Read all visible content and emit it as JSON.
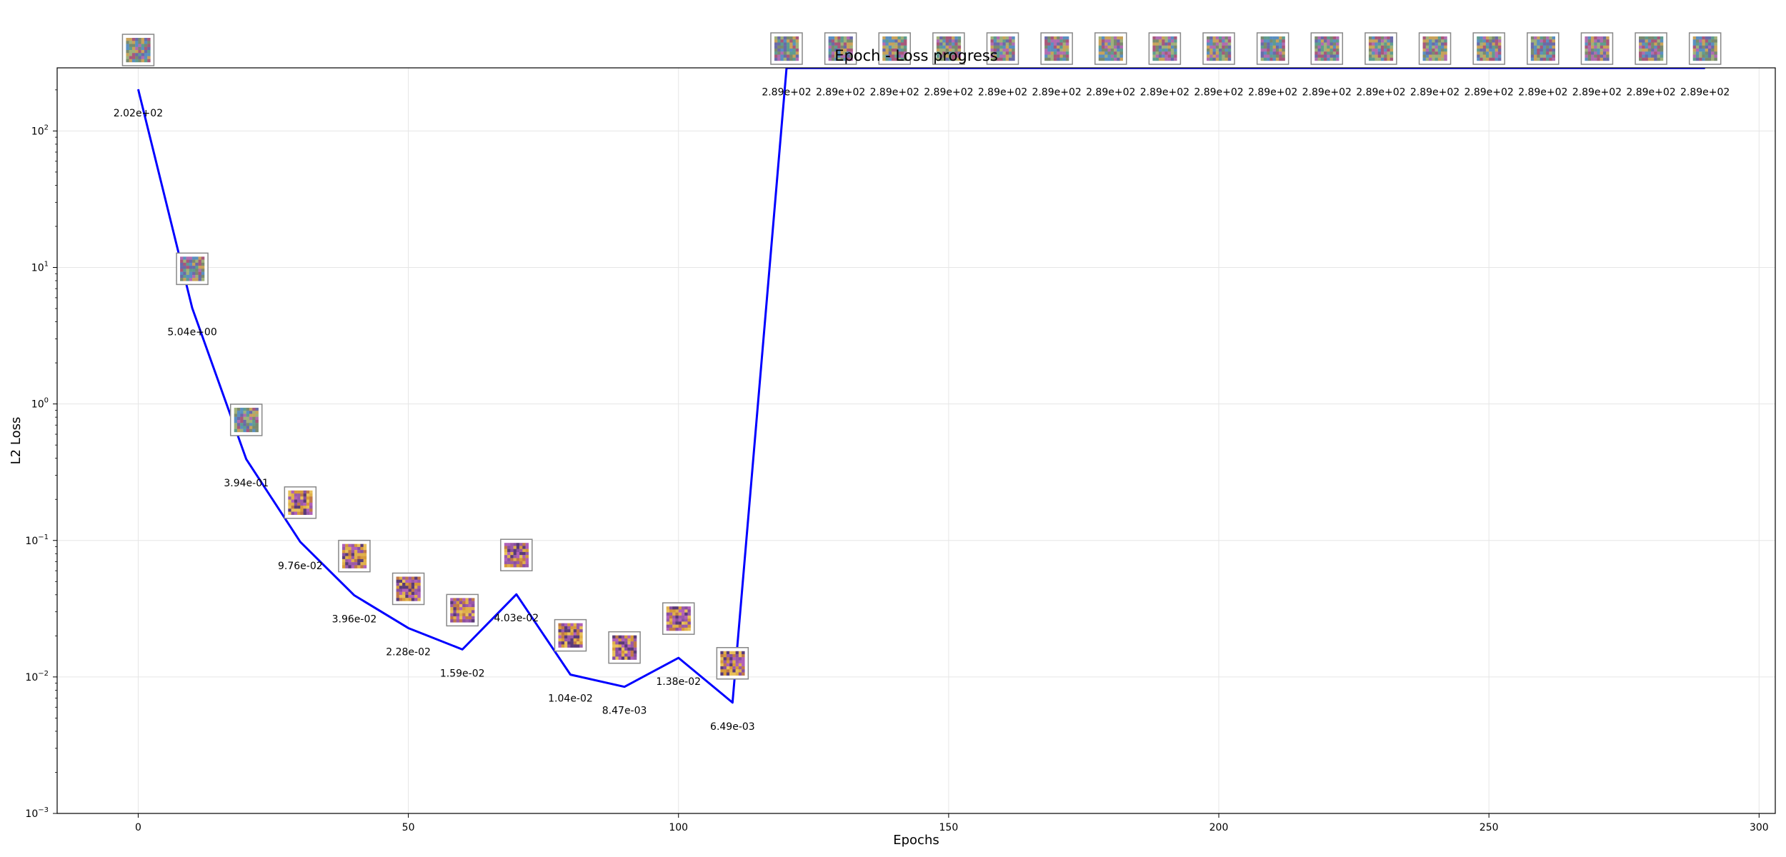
{
  "chart_data": {
    "type": "line",
    "title": "Epoch - Loss progress",
    "xlabel": "Epochs",
    "ylabel": "L2 Loss",
    "y_scale": "log",
    "xlim": [
      -15,
      303
    ],
    "ylim": [
      0.001,
      290
    ],
    "grid": true,
    "x_ticks": [
      0,
      50,
      100,
      150,
      200,
      250,
      300
    ],
    "y_ticks": [
      0.001,
      0.01,
      0.1,
      1,
      10,
      100
    ],
    "y_tick_labels": [
      {
        "base": "10",
        "exp": "−3"
      },
      {
        "base": "10",
        "exp": "−2"
      },
      {
        "base": "10",
        "exp": "−1"
      },
      {
        "base": "10",
        "exp": "0"
      },
      {
        "base": "10",
        "exp": "1"
      },
      {
        "base": "10",
        "exp": "2"
      }
    ],
    "series": [
      {
        "color": "#0000ff",
        "x": [
          0,
          10,
          20,
          30,
          40,
          50,
          60,
          70,
          80,
          90,
          100,
          110,
          120,
          130,
          140,
          150,
          160,
          170,
          180,
          190,
          200,
          210,
          220,
          230,
          240,
          250,
          260,
          270,
          280,
          290
        ],
        "y": [
          202,
          5.04,
          0.394,
          0.0976,
          0.0396,
          0.0228,
          0.0159,
          0.0403,
          0.0104,
          0.00847,
          0.0138,
          0.00649,
          289,
          289,
          289,
          289,
          289,
          289,
          289,
          289,
          289,
          289,
          289,
          289,
          289,
          289,
          289,
          289,
          289,
          289
        ]
      }
    ],
    "point_labels": [
      "2.02e+02",
      "5.04e+00",
      "3.94e-01",
      "9.76e-02",
      "3.96e-02",
      "2.28e-02",
      "1.59e-02",
      "4.03e-02",
      "1.04e-02",
      "8.47e-03",
      "1.38e-02",
      "6.49e-03",
      "2.89e+02",
      "2.89e+02",
      "2.89e+02",
      "2.89e+02",
      "2.89e+02",
      "2.89e+02",
      "2.89e+02",
      "2.89e+02",
      "2.89e+02",
      "2.89e+02",
      "2.89e+02",
      "2.89e+02",
      "2.89e+02",
      "2.89e+02",
      "2.89e+02",
      "2.89e+02",
      "2.89e+02",
      "2.89e+02"
    ],
    "thumbnail_palettes": {
      "noise": [
        "#7a8a6e",
        "#b06cb0",
        "#5f9c8f",
        "#c8a25a",
        "#6a6aa8",
        "#9fb07a",
        "#a8587a",
        "#5a8fc0"
      ],
      "image": [
        "#d69a3a",
        "#e0b04a",
        "#8a4fa0",
        "#b060b8",
        "#5a3a78",
        "#c07848",
        "#9a5aa8",
        "#e8c05a"
      ]
    }
  }
}
